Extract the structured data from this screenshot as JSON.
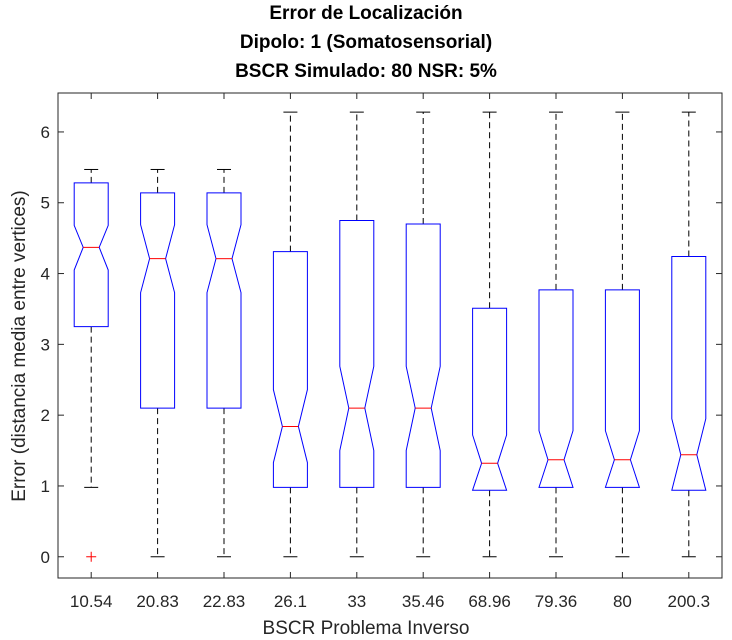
{
  "chart_data": {
    "type": "boxplot",
    "title": [
      "Error de Localización",
      "Dipolo: 1 (Somatosensorial)",
      "BSCR Simulado: 80 NSR: 5%"
    ],
    "xlabel": "BSCR Problema Inverso",
    "ylabel": "Error (distancia media entre vertices)",
    "ylim": [
      -0.3,
      6.55
    ],
    "yticks": [
      0,
      1,
      2,
      3,
      4,
      5,
      6
    ],
    "grid": false,
    "colors": {
      "box": "#0000ff",
      "median": "#ff0000",
      "whisker": "#000000",
      "outlier": "#ff0000"
    },
    "categories": [
      "10.54",
      "20.83",
      "22.83",
      "26.1",
      "33",
      "35.46",
      "68.96",
      "79.36",
      "80",
      "200.3"
    ],
    "boxes": [
      {
        "whisker_low": 0.98,
        "q1": 3.25,
        "median": 4.37,
        "q3": 5.28,
        "whisker_high": 5.47,
        "notch_low": 4.05,
        "notch_high": 4.68,
        "outliers": [
          0
        ]
      },
      {
        "whisker_low": 0,
        "q1": 2.1,
        "median": 4.21,
        "q3": 5.14,
        "whisker_high": 5.47,
        "notch_low": 3.73,
        "notch_high": 4.69,
        "outliers": []
      },
      {
        "whisker_low": 0,
        "q1": 2.1,
        "median": 4.21,
        "q3": 5.14,
        "whisker_high": 5.47,
        "notch_low": 3.73,
        "notch_high": 4.69,
        "outliers": []
      },
      {
        "whisker_low": 0,
        "q1": 0.98,
        "median": 1.84,
        "q3": 4.31,
        "whisker_high": 6.28,
        "notch_low": 1.33,
        "notch_high": 2.36,
        "outliers": []
      },
      {
        "whisker_low": 0,
        "q1": 0.98,
        "median": 2.1,
        "q3": 4.75,
        "whisker_high": 6.28,
        "notch_low": 1.5,
        "notch_high": 2.69,
        "outliers": []
      },
      {
        "whisker_low": 0,
        "q1": 0.98,
        "median": 2.1,
        "q3": 4.7,
        "whisker_high": 6.28,
        "notch_low": 1.5,
        "notch_high": 2.69,
        "outliers": []
      },
      {
        "whisker_low": 0,
        "q1": 0.94,
        "median": 1.32,
        "q3": 3.51,
        "whisker_high": 6.28,
        "notch_low": 0.94,
        "notch_high": 1.72,
        "outliers": []
      },
      {
        "whisker_low": 0,
        "q1": 0.98,
        "median": 1.37,
        "q3": 3.77,
        "whisker_high": 6.28,
        "notch_low": 0.98,
        "notch_high": 1.78,
        "outliers": []
      },
      {
        "whisker_low": 0,
        "q1": 0.98,
        "median": 1.37,
        "q3": 3.77,
        "whisker_high": 6.28,
        "notch_low": 0.98,
        "notch_high": 1.78,
        "outliers": []
      },
      {
        "whisker_low": 0,
        "q1": 0.94,
        "median": 1.44,
        "q3": 4.24,
        "whisker_high": 6.28,
        "notch_low": 0.94,
        "notch_high": 1.95,
        "outliers": []
      }
    ]
  }
}
